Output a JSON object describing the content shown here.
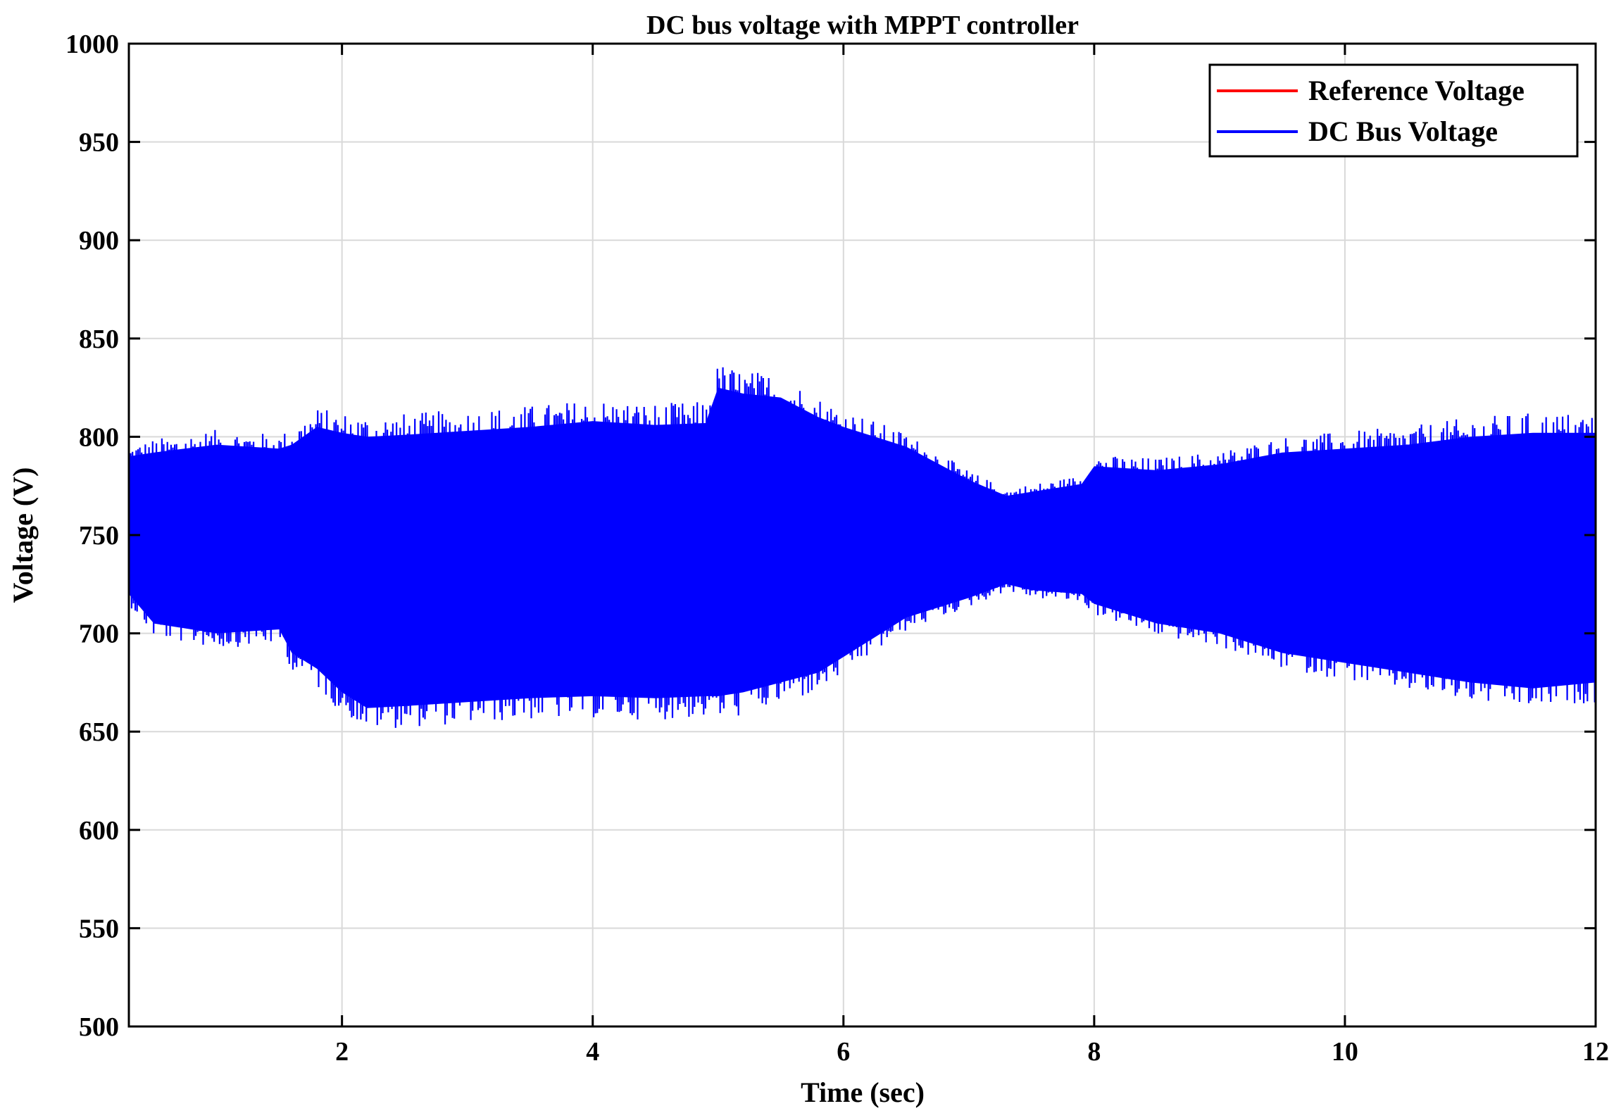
{
  "chart_data": {
    "type": "line",
    "title": "DC bus voltage with MPPT controller",
    "xlabel": "Time (sec)",
    "ylabel": "Voltage (V)",
    "xlim": [
      0.3,
      12
    ],
    "ylim": [
      500,
      1000
    ],
    "xticks": [
      2,
      4,
      6,
      8,
      10,
      12
    ],
    "yticks": [
      500,
      550,
      600,
      650,
      700,
      750,
      800,
      850,
      900,
      950,
      1000
    ],
    "grid": true,
    "legend_position": "top-right",
    "series": [
      {
        "name": "Reference Voltage",
        "color": "#ff0000",
        "x": [
          0.3,
          12
        ],
        "y": [
          750,
          750
        ]
      },
      {
        "name": "DC Bus Voltage",
        "color": "#0000ff",
        "envelope": {
          "x": [
            0.3,
            0.5,
            1.0,
            1.5,
            1.6,
            1.8,
            2.0,
            2.2,
            2.5,
            3.0,
            3.5,
            4.0,
            4.5,
            4.9,
            5.0,
            5.2,
            5.5,
            5.8,
            6.0,
            6.5,
            7.0,
            7.3,
            7.5,
            7.9,
            8.0,
            8.5,
            9.0,
            9.5,
            10.0,
            10.5,
            11.0,
            11.5,
            12.0
          ],
          "upper": [
            790,
            792,
            796,
            794,
            796,
            805,
            802,
            800,
            801,
            803,
            805,
            808,
            806,
            807,
            825,
            822,
            820,
            810,
            805,
            795,
            778,
            770,
            772,
            776,
            785,
            783,
            786,
            792,
            794,
            796,
            800,
            802,
            802
          ],
          "lower": [
            720,
            705,
            700,
            702,
            690,
            682,
            670,
            662,
            663,
            665,
            667,
            668,
            667,
            668,
            668,
            670,
            675,
            680,
            688,
            708,
            718,
            725,
            722,
            720,
            715,
            705,
            700,
            690,
            685,
            680,
            675,
            672,
            675
          ]
        }
      }
    ]
  }
}
